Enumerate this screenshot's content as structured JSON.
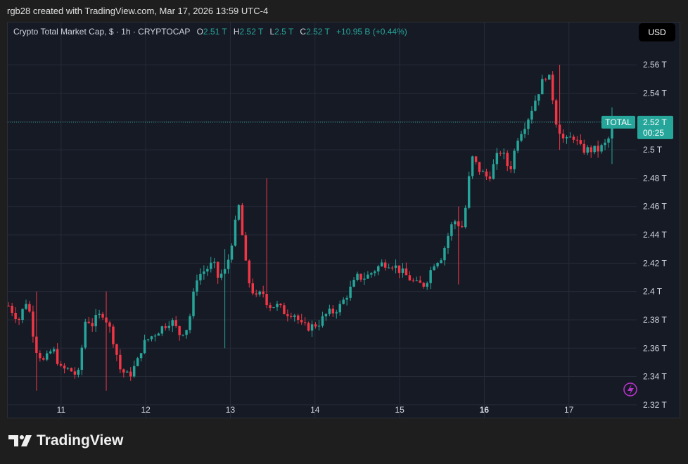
{
  "header": {
    "caption": "rgb28 created with TradingView.com, Mar 17, 2026 13:59 UTC-4"
  },
  "legend": {
    "symbol": "Crypto Total Market Cap, $ · 1h · CRYPTOCAP",
    "o_label": "O",
    "o_value": "2.51 T",
    "h_label": "H",
    "h_value": "2.52 T",
    "l_label": "L",
    "l_value": "2.5 T",
    "c_label": "C",
    "c_value": "2.52 T",
    "change": "+10.95 B (+0.44%)"
  },
  "currency_button": "USD",
  "price_tag": {
    "name": "TOTAL",
    "price": "2.52 T",
    "countdown": "00:25"
  },
  "brand": "TradingView",
  "colors": {
    "up": "#26a69a",
    "down": "#f23645",
    "grid": "#262b38",
    "background": "#161a25",
    "price_line": "#26a69a"
  },
  "icons": {
    "logo": "tradingview-logo-icon",
    "alert": "lightning-icon"
  },
  "chart_data": {
    "type": "candlestick",
    "x_tick_labels": [
      "11",
      "12",
      "13",
      "14",
      "15",
      "16",
      "17"
    ],
    "x_tick_bold": "16",
    "y_tick_labels": [
      "2.56 T",
      "2.54 T",
      "2.52 T",
      "2.5 T",
      "2.48 T",
      "2.46 T",
      "2.44 T",
      "2.42 T",
      "2.4 T",
      "2.38 T",
      "2.36 T",
      "2.34 T",
      "2.32 T"
    ],
    "y_range": [
      2.311,
      2.575
    ],
    "x_range": [
      10.37,
      17.8
    ],
    "last_price": 2.5195,
    "unit": "trillion USD",
    "grid": true,
    "close_path_x": [
      10.38,
      10.5,
      10.6,
      10.7,
      10.8,
      10.9,
      11.0,
      11.1,
      11.2,
      11.3,
      11.35,
      11.4,
      11.5,
      11.6,
      11.7,
      11.8,
      11.9,
      11.95,
      12.0,
      12.1,
      12.2,
      12.3,
      12.4,
      12.5,
      12.6,
      12.7,
      12.8,
      12.85,
      12.95,
      13.1,
      13.2,
      13.3,
      13.38,
      13.45,
      13.55,
      13.65,
      13.75,
      13.85,
      13.95,
      14.05,
      14.15,
      14.2,
      14.3,
      14.4,
      14.5,
      14.6,
      14.7,
      14.8,
      14.9,
      15.0,
      15.1,
      15.2,
      15.3,
      15.4,
      15.5,
      15.6,
      15.65,
      15.75,
      15.8,
      15.85,
      15.95,
      16.05,
      16.15,
      16.2,
      16.3,
      16.4,
      16.5,
      16.6,
      16.7,
      16.75,
      16.8,
      16.85,
      16.95,
      17.05,
      17.15,
      17.25,
      17.35,
      17.45,
      17.55
    ],
    "close_path_y": [
      2.39,
      2.38,
      2.395,
      2.36,
      2.35,
      2.36,
      2.345,
      2.345,
      2.34,
      2.385,
      2.375,
      2.38,
      2.385,
      2.37,
      2.345,
      2.34,
      2.35,
      2.36,
      2.365,
      2.37,
      2.375,
      2.38,
      2.37,
      2.375,
      2.41,
      2.415,
      2.42,
      2.41,
      2.415,
      2.46,
      2.41,
      2.395,
      2.4,
      2.39,
      2.39,
      2.385,
      2.385,
      2.375,
      2.375,
      2.378,
      2.385,
      2.385,
      2.39,
      2.4,
      2.41,
      2.41,
      2.415,
      2.42,
      2.42,
      2.415,
      2.41,
      2.405,
      2.405,
      2.42,
      2.425,
      2.445,
      2.45,
      2.445,
      2.47,
      2.495,
      2.485,
      2.48,
      2.495,
      2.5,
      2.485,
      2.51,
      2.52,
      2.535,
      2.55,
      2.555,
      2.54,
      2.52,
      2.505,
      2.51,
      2.5,
      2.5,
      2.5,
      2.505,
      2.52
    ],
    "candle_count": 175,
    "candle_spread": 0.0045,
    "volatile_spots": [
      [
        10.72,
        2.4,
        2.33
      ],
      [
        11.52,
        2.4,
        2.33
      ],
      [
        12.95,
        2.43,
        2.36
      ],
      [
        13.43,
        2.48,
        2.395
      ],
      [
        15.68,
        2.46,
        2.405
      ],
      [
        16.9,
        2.56,
        2.5
      ],
      [
        17.5,
        2.53,
        2.49
      ]
    ]
  }
}
